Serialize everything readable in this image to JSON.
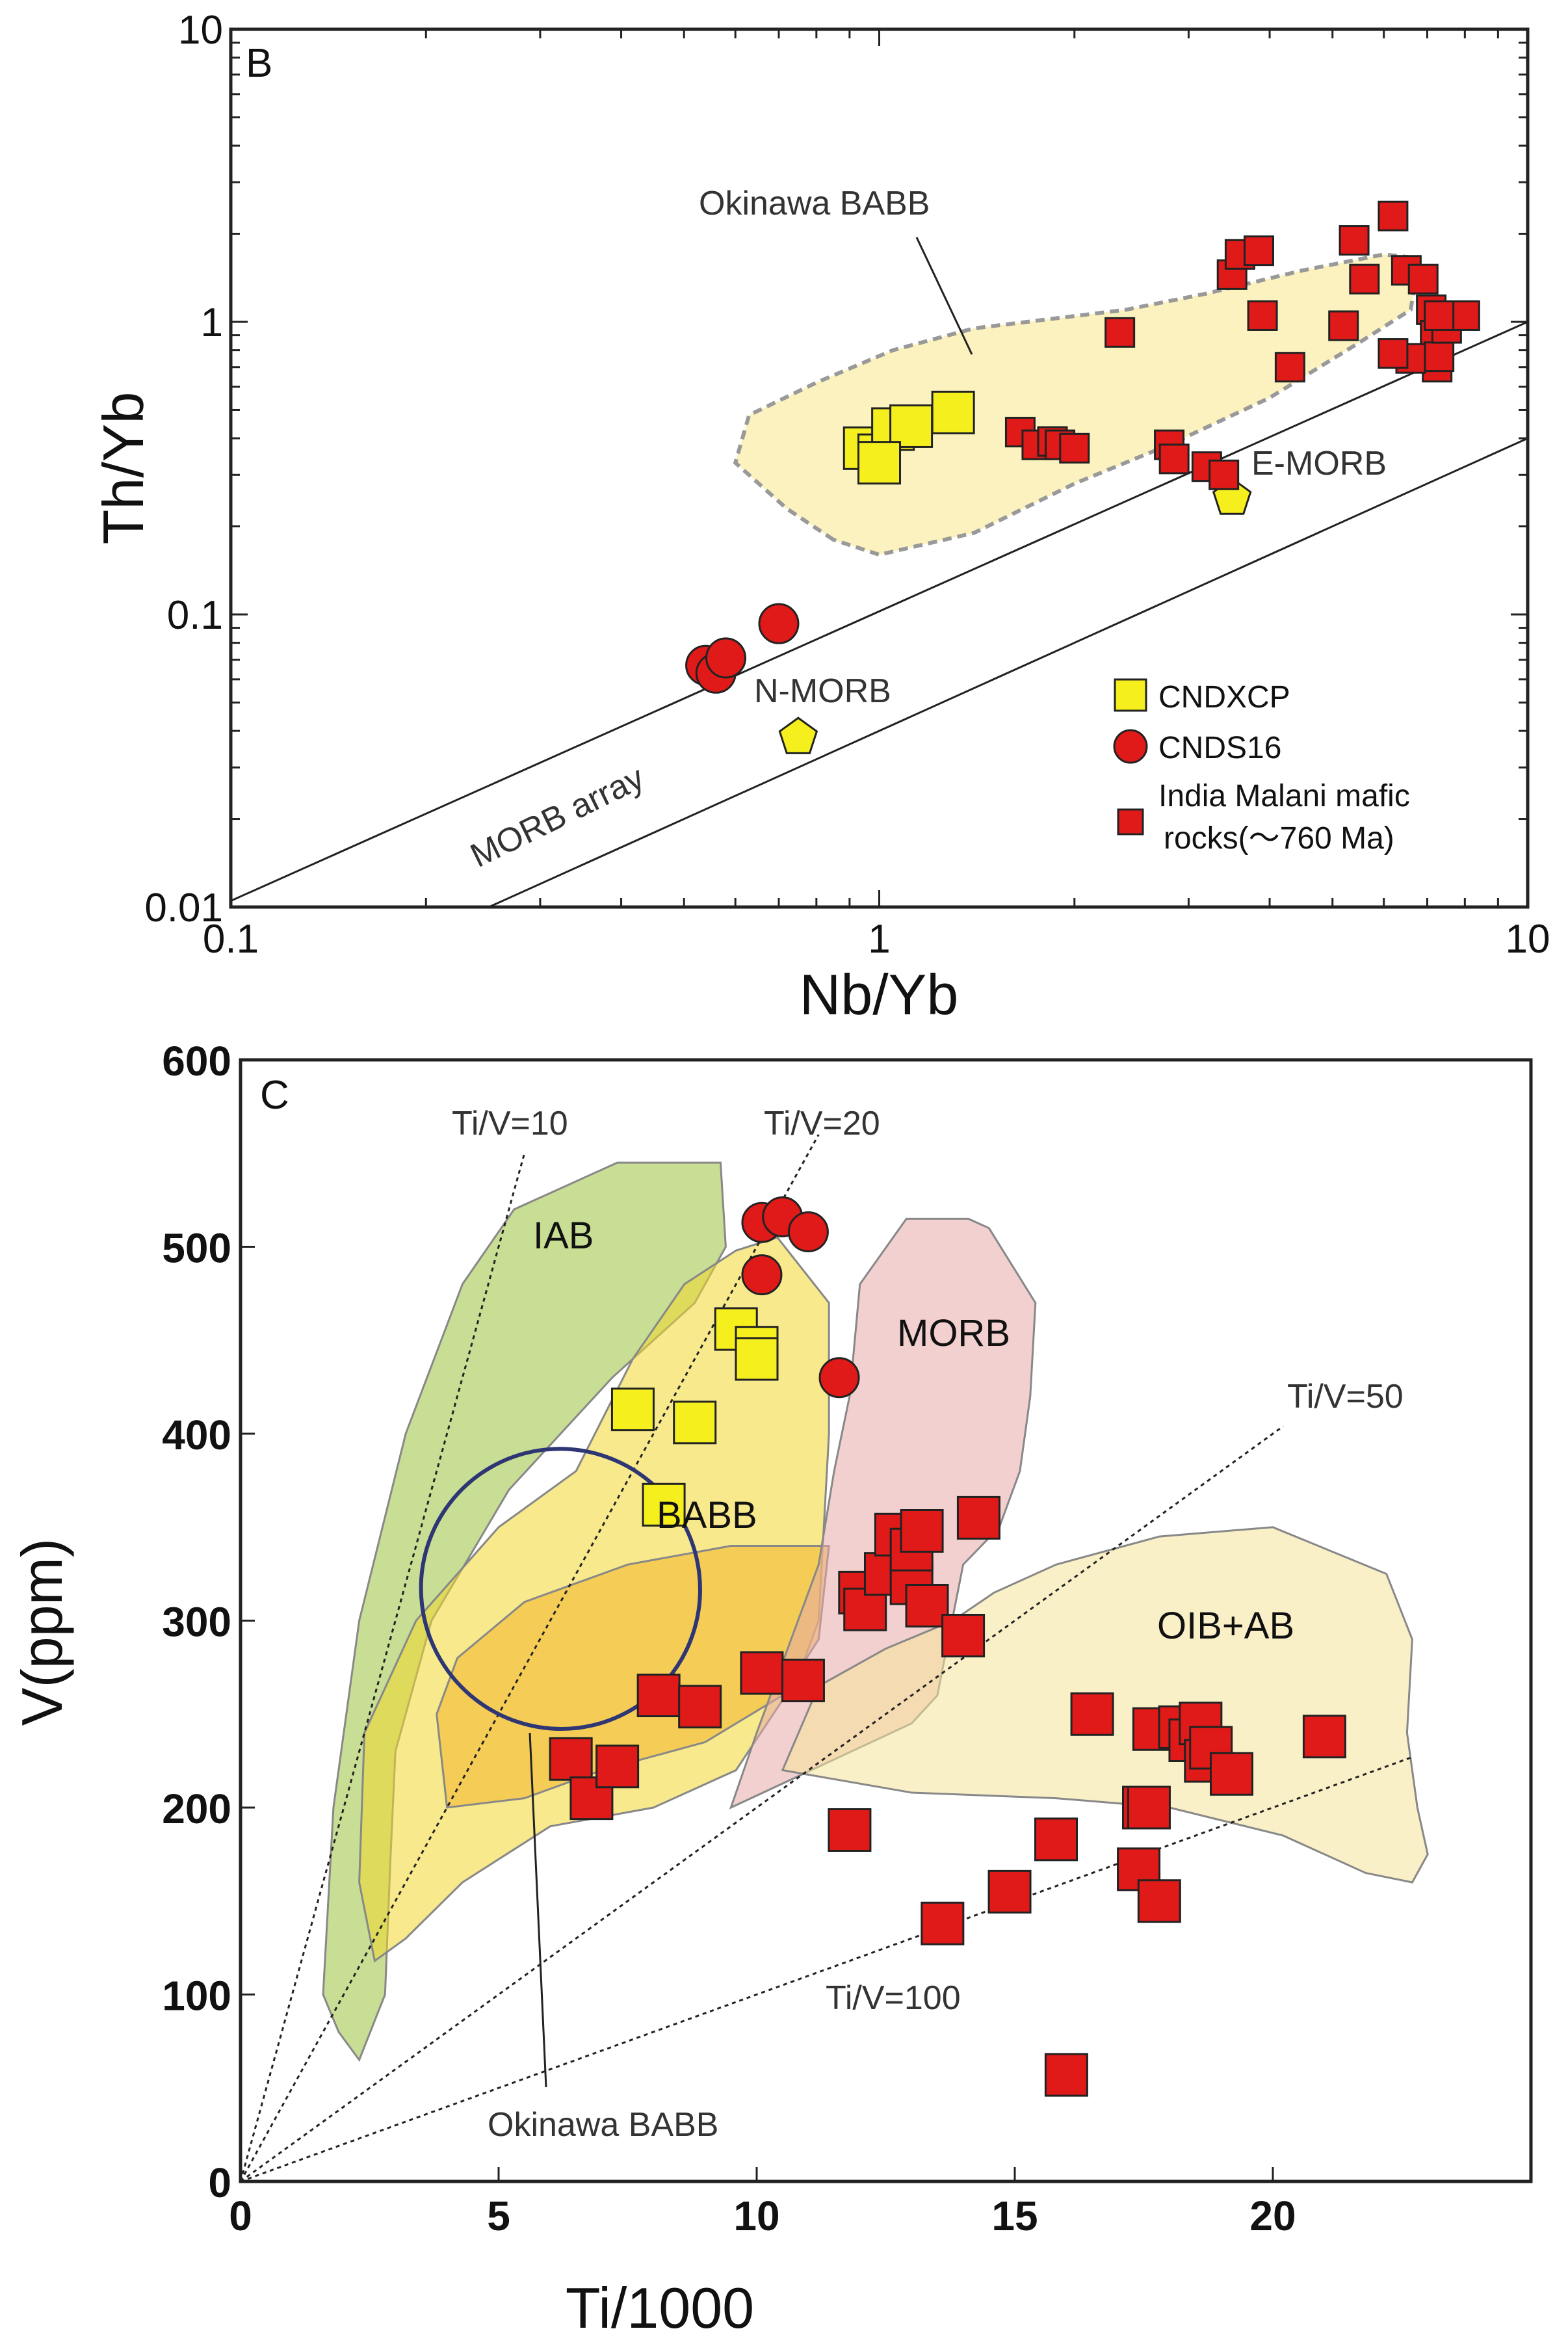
{
  "chart_data": [
    {
      "panel": "B",
      "type": "scatter",
      "xscale": "log",
      "yscale": "log",
      "xlabel": "Nb/Yb",
      "ylabel": "Th/Yb",
      "xlim": [
        0.1,
        10
      ],
      "ylim": [
        0.01,
        10
      ],
      "xticks": [
        {
          "v": 0.1,
          "t": "0.1"
        },
        {
          "v": 1,
          "t": "1"
        },
        {
          "v": 10,
          "t": "10"
        }
      ],
      "yticks": [
        {
          "v": 0.01,
          "t": "0.01"
        },
        {
          "v": 0.1,
          "t": "0.1"
        },
        {
          "v": 1,
          "t": "1"
        },
        {
          "v": 10,
          "t": "10"
        }
      ],
      "region": {
        "name": "Okinawa BABB",
        "outline": [
          [
            0.85,
            0.18
          ],
          [
            0.72,
            0.23
          ],
          [
            0.6,
            0.33
          ],
          [
            0.63,
            0.48
          ],
          [
            0.8,
            0.62
          ],
          [
            1.05,
            0.8
          ],
          [
            1.4,
            0.95
          ],
          [
            2.4,
            1.1
          ],
          [
            3.2,
            1.25
          ],
          [
            4.5,
            1.5
          ],
          [
            6.0,
            1.7
          ],
          [
            6.8,
            1.65
          ],
          [
            6.6,
            1.1
          ],
          [
            5.5,
            0.85
          ],
          [
            4.0,
            0.55
          ],
          [
            2.8,
            0.38
          ],
          [
            2.0,
            0.28
          ],
          [
            1.4,
            0.19
          ],
          [
            1.0,
            0.16
          ]
        ]
      },
      "reference_points": [
        {
          "name": "E-MORB",
          "x": 3.5,
          "y": 0.25
        },
        {
          "name": "N-MORB",
          "x": 0.75,
          "y": 0.038
        }
      ],
      "array_lines": [
        {
          "x1": 0.1,
          "y1": 0.0105,
          "x2": 10,
          "y2": 1.0
        },
        {
          "x1": 0.25,
          "y1": 0.01,
          "x2": 10,
          "y2": 0.4
        }
      ],
      "series": [
        {
          "name": "CNDXCP",
          "marker": "square",
          "color": "#f5ef1d",
          "points": [
            [
              0.95,
              0.37
            ],
            [
              1.0,
              0.35
            ],
            [
              1.05,
              0.43
            ],
            [
              1.12,
              0.44
            ],
            [
              1.3,
              0.49
            ],
            [
              1.0,
              0.33
            ]
          ]
        },
        {
          "name": "CNDS16",
          "marker": "circle",
          "color": "#e01919",
          "points": [
            [
              0.54,
              0.067
            ],
            [
              0.56,
              0.063
            ],
            [
              0.58,
              0.071
            ],
            [
              0.7,
              0.093
            ]
          ]
        },
        {
          "name": "India Malani mafic rocks(～760 Ma)",
          "marker": "square-small",
          "color": "#e01919",
          "points": [
            [
              1.65,
              0.42
            ],
            [
              1.75,
              0.38
            ],
            [
              1.85,
              0.39
            ],
            [
              1.9,
              0.38
            ],
            [
              2.0,
              0.37
            ],
            [
              2.35,
              0.92
            ],
            [
              2.8,
              0.38
            ],
            [
              2.85,
              0.34
            ],
            [
              3.2,
              0.32
            ],
            [
              3.4,
              0.3
            ],
            [
              3.5,
              1.45
            ],
            [
              3.6,
              1.7
            ],
            [
              3.85,
              1.75
            ],
            [
              3.9,
              1.05
            ],
            [
              4.3,
              0.7
            ],
            [
              5.2,
              0.97
            ],
            [
              5.4,
              1.9
            ],
            [
              5.6,
              1.4
            ],
            [
              6.2,
              2.3
            ],
            [
              6.5,
              1.5
            ],
            [
              6.9,
              1.4
            ],
            [
              7.1,
              1.1
            ],
            [
              7.2,
              0.9
            ],
            [
              7.25,
              0.7
            ],
            [
              7.3,
              0.76
            ],
            [
              6.6,
              0.75
            ],
            [
              6.2,
              0.78
            ],
            [
              7.5,
              0.95
            ],
            [
              8.0,
              1.05
            ],
            [
              7.3,
              1.05
            ]
          ]
        }
      ],
      "labels": {
        "panel": "B",
        "okinawa": "Okinawa BABB",
        "emorb": "E-MORB",
        "nmorb": "N-MORB",
        "morb_array": "MORB array"
      },
      "legend": [
        {
          "label": "CNDXCP"
        },
        {
          "label": "CNDS16"
        },
        {
          "label": "India Malani mafic"
        },
        {
          "label": "rocks(～760 Ma)"
        }
      ]
    },
    {
      "panel": "C",
      "type": "scatter",
      "xlabel": "Ti/1000",
      "ylabel": "V(ppm)",
      "xlim": [
        0,
        25
      ],
      "ylim": [
        0,
        600
      ],
      "xticks": [
        {
          "v": 0,
          "t": "0"
        },
        {
          "v": 5,
          "t": "5"
        },
        {
          "v": 10,
          "t": "10"
        },
        {
          "v": 15,
          "t": "15"
        },
        {
          "v": 20,
          "t": "20"
        }
      ],
      "yticks": [
        {
          "v": 0,
          "t": "0"
        },
        {
          "v": 100,
          "t": "100"
        },
        {
          "v": 200,
          "t": "200"
        },
        {
          "v": 300,
          "t": "300"
        },
        {
          "v": 400,
          "t": "400"
        },
        {
          "v": 500,
          "t": "500"
        },
        {
          "v": 600,
          "t": "600"
        }
      ],
      "ratio_lines": [
        {
          "label": "Ti/V=10",
          "ratio": 10,
          "x_end": 5.5
        },
        {
          "label": "Ti/V=20",
          "ratio": 20,
          "x_end": 11.2
        },
        {
          "label": "Ti/V=50",
          "ratio": 50,
          "x_end": 20.2
        },
        {
          "label": "Ti/V=100",
          "ratio": 100,
          "x_end": 22.7
        }
      ],
      "fields": [
        {
          "name": "IAB",
          "color": "#9bc23c",
          "outline": [
            [
              1.9,
              80
            ],
            [
              1.6,
              100
            ],
            [
              1.8,
              200
            ],
            [
              2.3,
              300
            ],
            [
              3.2,
              400
            ],
            [
              4.3,
              480
            ],
            [
              5.3,
              520
            ],
            [
              7.3,
              545
            ],
            [
              9.3,
              545
            ],
            [
              9.4,
              500
            ],
            [
              8.8,
              470
            ],
            [
              7.2,
              430
            ],
            [
              5.2,
              370
            ],
            [
              3.7,
              300
            ],
            [
              3.0,
              230
            ],
            [
              2.9,
              170
            ],
            [
              2.8,
              100
            ],
            [
              2.3,
              65
            ]
          ]
        },
        {
          "name": "BABB",
          "color": "#f0d72d",
          "outline": [
            [
              2.6,
              118
            ],
            [
              2.3,
              160
            ],
            [
              2.4,
              240
            ],
            [
              3.4,
              300
            ],
            [
              5.0,
              350
            ],
            [
              6.5,
              380
            ],
            [
              7.6,
              440
            ],
            [
              8.6,
              480
            ],
            [
              9.6,
              498
            ],
            [
              10.4,
              505
            ],
            [
              11.4,
              470
            ],
            [
              11.4,
              400
            ],
            [
              11.2,
              300
            ],
            [
              10.8,
              270
            ],
            [
              9.6,
              220
            ],
            [
              8.0,
              200
            ],
            [
              6.0,
              190
            ],
            [
              4.3,
              160
            ],
            [
              3.2,
              130
            ]
          ]
        },
        {
          "name": "BABB-inner",
          "color": "#f3b52a",
          "outline": [
            [
              4.0,
              200
            ],
            [
              3.8,
              250
            ],
            [
              4.2,
              280
            ],
            [
              5.5,
              310
            ],
            [
              7.5,
              330
            ],
            [
              9.5,
              340
            ],
            [
              11.4,
              340
            ],
            [
              11.2,
              290
            ],
            [
              10.5,
              260
            ],
            [
              9.0,
              235
            ],
            [
              7.0,
              220
            ],
            [
              5.5,
              205
            ]
          ]
        },
        {
          "name": "MORB",
          "color": "#e8a9a8",
          "outline": [
            [
              9.5,
              200
            ],
            [
              10.0,
              240
            ],
            [
              11.2,
              330
            ],
            [
              11.5,
              380
            ],
            [
              11.8,
              420
            ],
            [
              12.0,
              480
            ],
            [
              12.9,
              515
            ],
            [
              14.1,
              515
            ],
            [
              14.5,
              510
            ],
            [
              15.4,
              470
            ],
            [
              15.3,
              420
            ],
            [
              15.1,
              380
            ],
            [
              14.7,
              350
            ],
            [
              14.0,
              330
            ],
            [
              13.5,
              260
            ],
            [
              13.0,
              245
            ]
          ]
        },
        {
          "name": "OIB+AB",
          "color": "#f5e39a",
          "outline": [
            [
              10.5,
              220
            ],
            [
              11.2,
              265
            ],
            [
              12.5,
              285
            ],
            [
              13.8,
              300
            ],
            [
              14.6,
              315
            ],
            [
              15.8,
              330
            ],
            [
              17.8,
              345
            ],
            [
              20.0,
              350
            ],
            [
              22.2,
              325
            ],
            [
              22.7,
              290
            ],
            [
              22.6,
              240
            ],
            [
              22.8,
              200
            ],
            [
              23.0,
              175
            ],
            [
              22.7,
              160
            ],
            [
              21.8,
              165
            ],
            [
              20.2,
              185
            ],
            [
              18.0,
              200
            ],
            [
              15.8,
              205
            ],
            [
              13.0,
              208
            ]
          ]
        }
      ],
      "ellipse": {
        "name": "Okinawa BABB",
        "cx": 6.2,
        "cy": 317,
        "rx": 2.7,
        "ry": 75,
        "angle_deg": 28
      },
      "series": [
        {
          "name": "CNDXCP",
          "marker": "square",
          "color": "#f5ef1d",
          "points": [
            [
              7.6,
              413
            ],
            [
              8.2,
              362
            ],
            [
              8.8,
              406
            ],
            [
              9.6,
              456
            ],
            [
              10.0,
              446
            ],
            [
              10.0,
              440
            ]
          ]
        },
        {
          "name": "CNDS16",
          "marker": "circle",
          "color": "#e01919",
          "points": [
            [
              10.1,
              513
            ],
            [
              10.5,
              516
            ],
            [
              11.0,
              508
            ],
            [
              10.1,
              485
            ],
            [
              11.6,
              430
            ]
          ]
        },
        {
          "name": "India Malani mafic rocks(～760 Ma)",
          "marker": "square",
          "color": "#e01919",
          "points": [
            [
              6.4,
              226
            ],
            [
              6.8,
              205
            ],
            [
              7.3,
              222
            ],
            [
              8.1,
              260
            ],
            [
              8.9,
              254
            ],
            [
              10.1,
              272
            ],
            [
              10.9,
              268
            ],
            [
              11.8,
              188
            ],
            [
              12.0,
              315
            ],
            [
              12.1,
              306
            ],
            [
              12.5,
              325
            ],
            [
              12.7,
              346
            ],
            [
              13.0,
              320
            ],
            [
              13.0,
              338
            ],
            [
              13.2,
              348
            ],
            [
              13.3,
              308
            ],
            [
              13.6,
              138
            ],
            [
              14.0,
              292
            ],
            [
              14.3,
              355
            ],
            [
              14.9,
              155
            ],
            [
              15.8,
              183
            ],
            [
              16.0,
              57
            ],
            [
              16.5,
              250
            ],
            [
              17.4,
              167
            ],
            [
              17.5,
              200
            ],
            [
              17.6,
              200
            ],
            [
              17.7,
              242
            ],
            [
              17.8,
              150
            ],
            [
              18.2,
              243
            ],
            [
              18.4,
              236
            ],
            [
              18.6,
              245
            ],
            [
              18.7,
              225
            ],
            [
              18.8,
              232
            ],
            [
              19.2,
              218
            ],
            [
              21.0,
              238
            ]
          ]
        }
      ],
      "labels": {
        "panel": "C",
        "iab": "IAB",
        "babb": "BABB",
        "morb": "MORB",
        "oib": "OIB+AB",
        "okinawa": "Okinawa BABB"
      }
    }
  ]
}
